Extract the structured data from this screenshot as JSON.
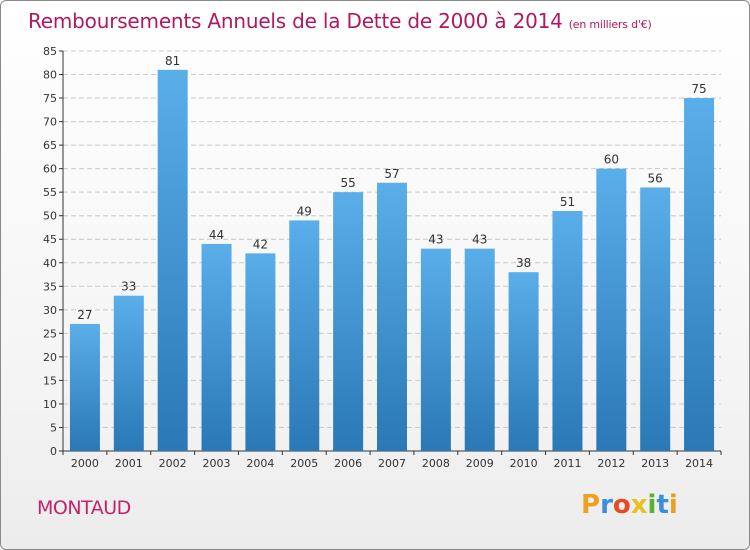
{
  "header": {
    "title": "Remboursements Annuels de la Dette de 2000 à 2014",
    "subtitle": "(en milliers d'€)"
  },
  "footer": {
    "town": "MONTAUD",
    "logo": "Proxiti"
  },
  "colors": {
    "title": "#b0195f",
    "bar_top": "#5aaee9",
    "bar_bottom": "#2a78b6",
    "grid": "#c8c8c8",
    "axis": "#333333"
  },
  "chart_data": {
    "type": "bar",
    "title": "Remboursements Annuels de la Dette de 2000 à 2014",
    "subtitle": "(en milliers d'€)",
    "xlabel": "",
    "ylabel": "",
    "categories": [
      "2000",
      "2001",
      "2002",
      "2003",
      "2004",
      "2005",
      "2006",
      "2007",
      "2008",
      "2009",
      "2010",
      "2011",
      "2012",
      "2013",
      "2014"
    ],
    "values": [
      27,
      33,
      81,
      44,
      42,
      49,
      55,
      57,
      43,
      43,
      38,
      51,
      60,
      56,
      75
    ],
    "ylim": [
      0,
      85
    ],
    "ytick_step": 5,
    "grid": true,
    "data_labels": true
  }
}
